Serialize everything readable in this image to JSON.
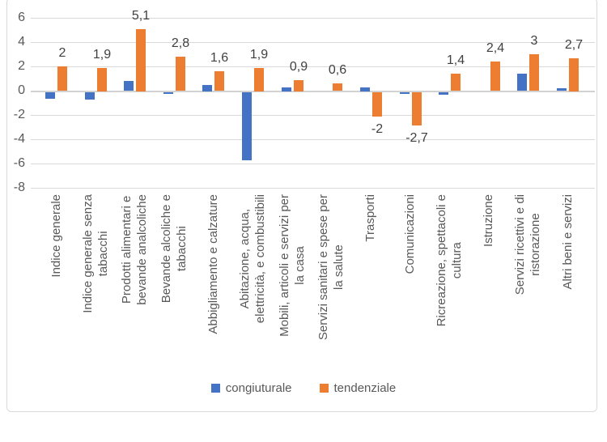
{
  "chart_data": {
    "type": "bar",
    "title": "",
    "xlabel": "",
    "ylabel": "",
    "ylim": [
      -8,
      6
    ],
    "yticks": [
      "6",
      "4",
      "2",
      "0",
      "-2",
      "-4",
      "-6",
      "-8"
    ],
    "ytick_values": [
      6,
      4,
      2,
      0,
      -2,
      -4,
      -6,
      -8
    ],
    "grid": true,
    "legend_position": "bottom",
    "categories": [
      "Indice generale",
      "Indice generale senza tabacchi",
      "Prodotti alimentari e bevande analcoliche",
      "Bevande alcoliche e tabacchi",
      "Abbigliamento e calzature",
      "Abitazione, acqua, elettricità, e combustibili",
      "Mobili, articoli e servizi per la casa",
      "Servizi sanitari e spese per la salute",
      "Trasporti",
      "Comunicazioni",
      "Ricreazione, spettacoli e cultura",
      "Istruzione",
      "Servizi ricettivi e di ristorazione",
      "Altri beni e servizi"
    ],
    "category_lines": [
      [
        "Indice generale"
      ],
      [
        "Indice generale senza",
        "tabacchi"
      ],
      [
        "Prodotti alimentari e",
        "bevande analcoliche"
      ],
      [
        "Bevande alcoliche e",
        "tabacchi"
      ],
      [
        "Abbigliamento e calzature"
      ],
      [
        "Abitazione, acqua,",
        "elettricità, e combustibili"
      ],
      [
        "Mobili, articoli e servizi per",
        "la casa"
      ],
      [
        "Servizi sanitari e spese per",
        "la salute"
      ],
      [
        "Trasporti"
      ],
      [
        "Comunicazioni"
      ],
      [
        "Ricreazione, spettacoli e",
        "cultura"
      ],
      [
        "Istruzione"
      ],
      [
        "Servizi ricettivi e di",
        "ristorazione"
      ],
      [
        "Altri beni e servizi"
      ]
    ],
    "series": [
      {
        "name": "congiuturale",
        "color": "#4472C4",
        "values": [
          -0.5,
          -0.6,
          0.8,
          -0.1,
          0.5,
          -5.6,
          0.3,
          0,
          0.3,
          -0.1,
          -0.2,
          0,
          1.4,
          0.2
        ],
        "data_labels": []
      },
      {
        "name": "tendenziale",
        "color": "#ED7D31",
        "values": [
          2,
          1.9,
          5.1,
          2.8,
          1.6,
          1.9,
          0.9,
          0.6,
          -2,
          -2.7,
          1.4,
          2.4,
          3,
          2.7
        ],
        "data_labels": [
          "2",
          "1,9",
          "5,1",
          "2,8",
          "1,6",
          "1,9",
          "0,9",
          "0,6",
          "-2",
          "-2,7",
          "1,4",
          "2,4",
          "3",
          "2,7"
        ]
      }
    ],
    "colors": {
      "axis_text": "#595959",
      "data_label_text": "#404040",
      "gridline": "#D9D9D9",
      "frame_border": "#D9D9D9",
      "background": "#FFFFFF"
    }
  }
}
